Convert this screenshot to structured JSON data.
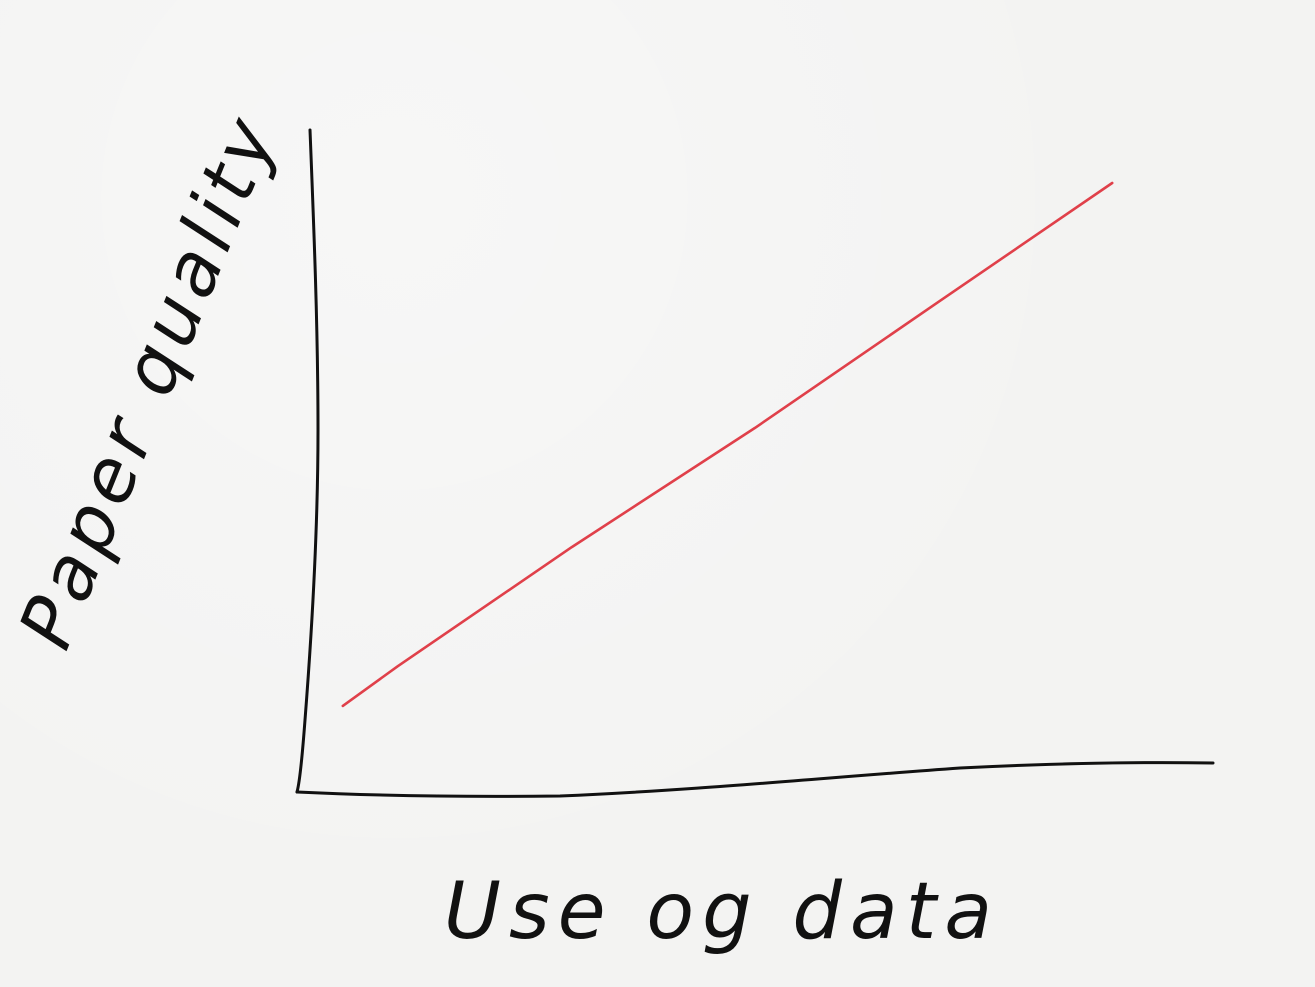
{
  "chart_data": {
    "type": "line",
    "title": "",
    "xlabel": "Use og data",
    "ylabel": "Paper quality",
    "grid": false,
    "xlim": [
      0,
      1
    ],
    "ylim": [
      0,
      1
    ],
    "series": [
      {
        "color": "#e0404a",
        "x": [
          0.05,
          0.11,
          0.3,
          0.5,
          0.7,
          0.89
        ],
        "y": [
          0.13,
          0.19,
          0.37,
          0.55,
          0.74,
          0.92
        ]
      }
    ]
  },
  "colors": {
    "axis": "#111111",
    "paper": "#f3f3f2"
  }
}
